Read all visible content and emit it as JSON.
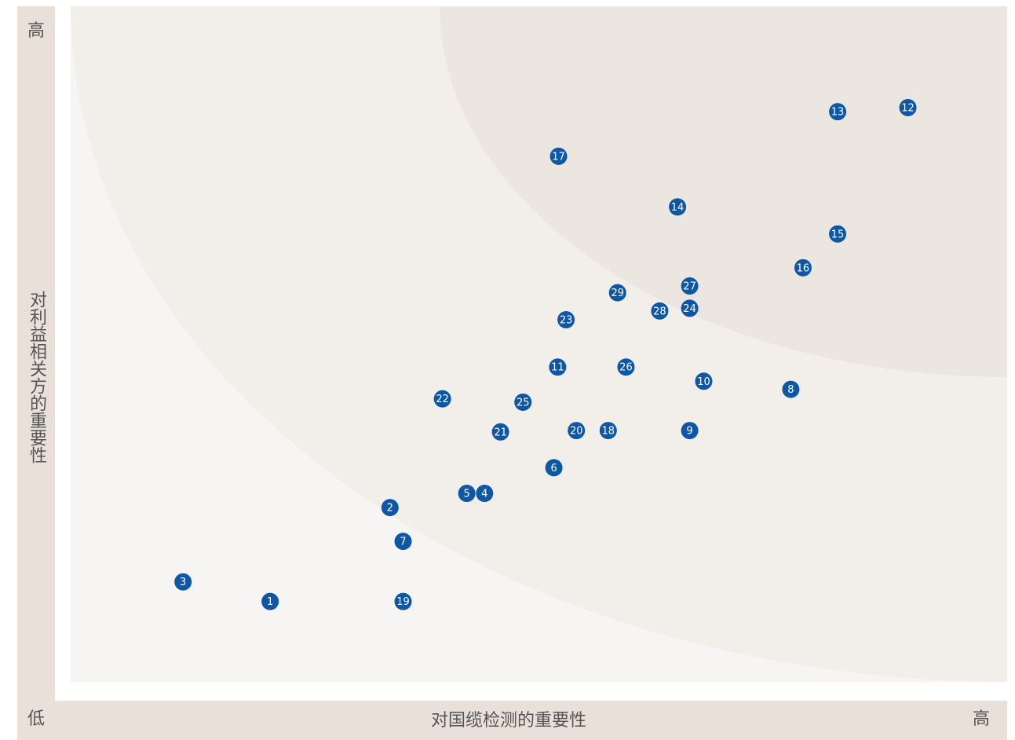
{
  "chart_data": {
    "type": "scatter",
    "xlabel": "对国缆检测的重要性",
    "ylabel": "对利益相关方的重要性",
    "x_low": "低",
    "x_high": "高",
    "y_high": "高",
    "xlim": [
      0,
      100
    ],
    "ylim": [
      0,
      100
    ],
    "series": [
      {
        "color": "#0d57a6",
        "labels": [
          "1",
          "2",
          "3",
          "4",
          "5",
          "6",
          "7",
          "8",
          "9",
          "10",
          "11",
          "12",
          "13",
          "14",
          "15",
          "16",
          "17",
          "18",
          "19",
          "20",
          "21",
          "22",
          "23",
          "24",
          "25",
          "26",
          "27",
          "28",
          "29"
        ],
        "x": [
          21.3,
          34.1,
          12.0,
          44.2,
          42.3,
          51.6,
          35.5,
          76.9,
          66.1,
          67.6,
          52.0,
          89.4,
          81.9,
          64.8,
          81.9,
          78.2,
          52.1,
          57.4,
          35.5,
          54.0,
          45.9,
          39.7,
          52.9,
          66.1,
          48.3,
          59.3,
          66.1,
          62.9,
          58.4
        ],
        "values": [
          11.9,
          25.8,
          14.8,
          27.9,
          27.9,
          31.7,
          20.8,
          43.3,
          37.2,
          44.5,
          46.6,
          85.0,
          84.4,
          70.3,
          66.3,
          61.3,
          77.8,
          37.2,
          11.9,
          37.2,
          37.0,
          41.9,
          53.6,
          55.3,
          41.4,
          46.6,
          58.6,
          54.9,
          57.6
        ]
      }
    ]
  }
}
